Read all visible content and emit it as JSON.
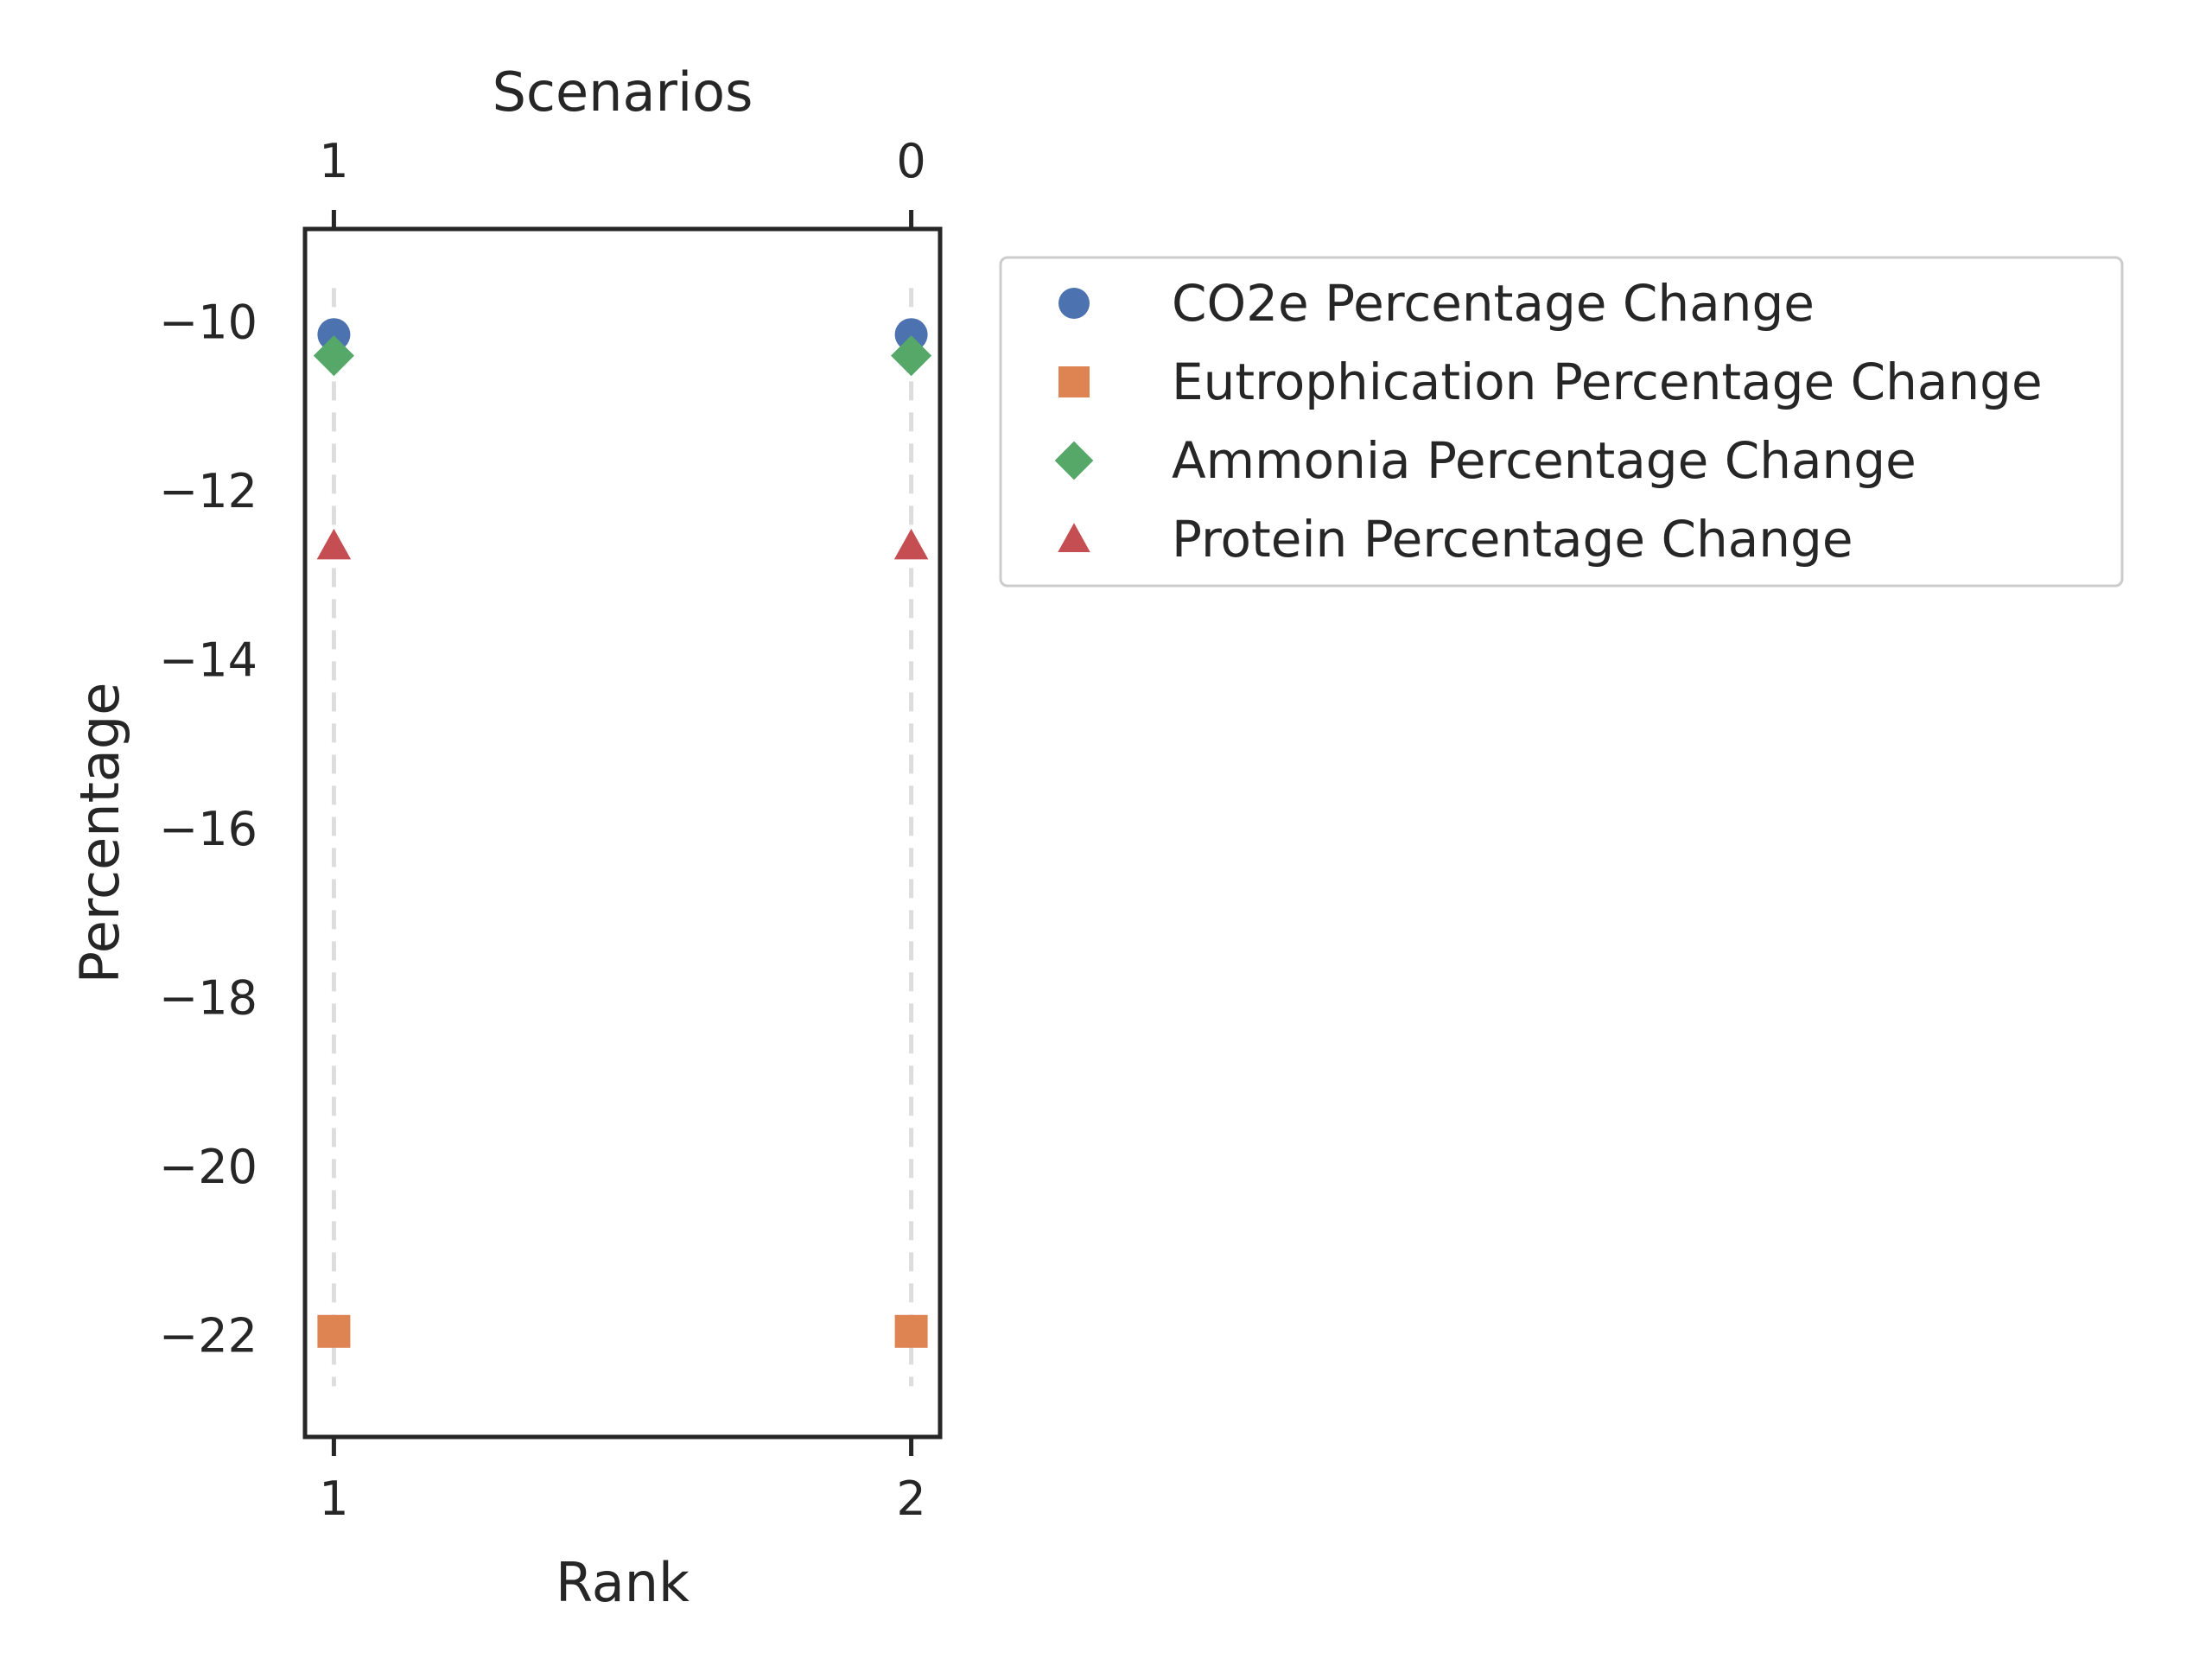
{
  "chart_data": {
    "type": "scatter",
    "xlabel": "Rank",
    "top_xlabel": "Scenarios",
    "ylabel": "Percentage",
    "x": [
      1,
      2
    ],
    "x_ticks": [
      "1",
      "2"
    ],
    "top_ticks": [
      "1",
      "0"
    ],
    "y_ticks": [
      -10,
      -12,
      -14,
      -16,
      -18,
      -20,
      -22
    ],
    "y_tick_labels": [
      "−10",
      "−12",
      "−14",
      "−16",
      "−18",
      "−20",
      "−22"
    ],
    "xlim": [
      0.95,
      2.05
    ],
    "ylim": [
      -23.2,
      -8.9
    ],
    "grid": "vertical dashed at each rank",
    "legend_position": "outside-right-top",
    "series": [
      {
        "name": "CO2e Percentage Change",
        "marker": "circle",
        "color": "#4c72b0",
        "values": [
          -10.15,
          -10.15
        ]
      },
      {
        "name": "Eutrophication Percentage Change",
        "marker": "square",
        "color": "#dd8452",
        "values": [
          -21.95,
          -21.95
        ]
      },
      {
        "name": "Ammonia Percentage Change",
        "marker": "diamond",
        "color": "#55a868",
        "values": [
          -10.4,
          -10.4
        ]
      },
      {
        "name": "Protein Percentage Change",
        "marker": "triangle",
        "color": "#c44e52",
        "values": [
          -12.65,
          -12.65
        ]
      }
    ]
  }
}
